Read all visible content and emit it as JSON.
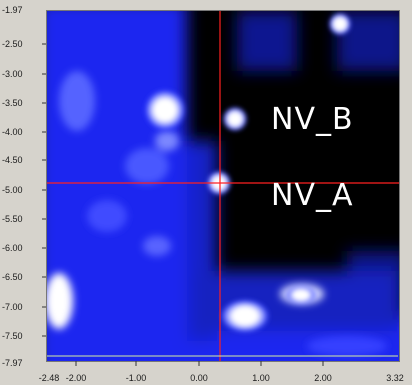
{
  "image": {
    "y_axis": {
      "ticks": [
        "-1.97",
        "-2.50",
        "-3.00",
        "-3.50",
        "-4.00",
        "-4.50",
        "-5.00",
        "-5.50",
        "-6.00",
        "-6.50",
        "-7.00",
        "-7.50",
        "-7.97"
      ]
    },
    "x_axis": {
      "ticks": [
        "-2.48",
        "-2.00",
        "-1.00",
        "0.00",
        "1.00",
        "2.00",
        "3.32"
      ]
    },
    "labels": {
      "nv_b": "NV_B",
      "nv_a": "NV_A"
    },
    "cursor": {
      "x_value": 0.33,
      "y_value": -4.82,
      "color": "#ff2020"
    },
    "colormap": {
      "low": "#000000",
      "mid": "#1e2cff",
      "high": "#ffffff"
    }
  }
}
